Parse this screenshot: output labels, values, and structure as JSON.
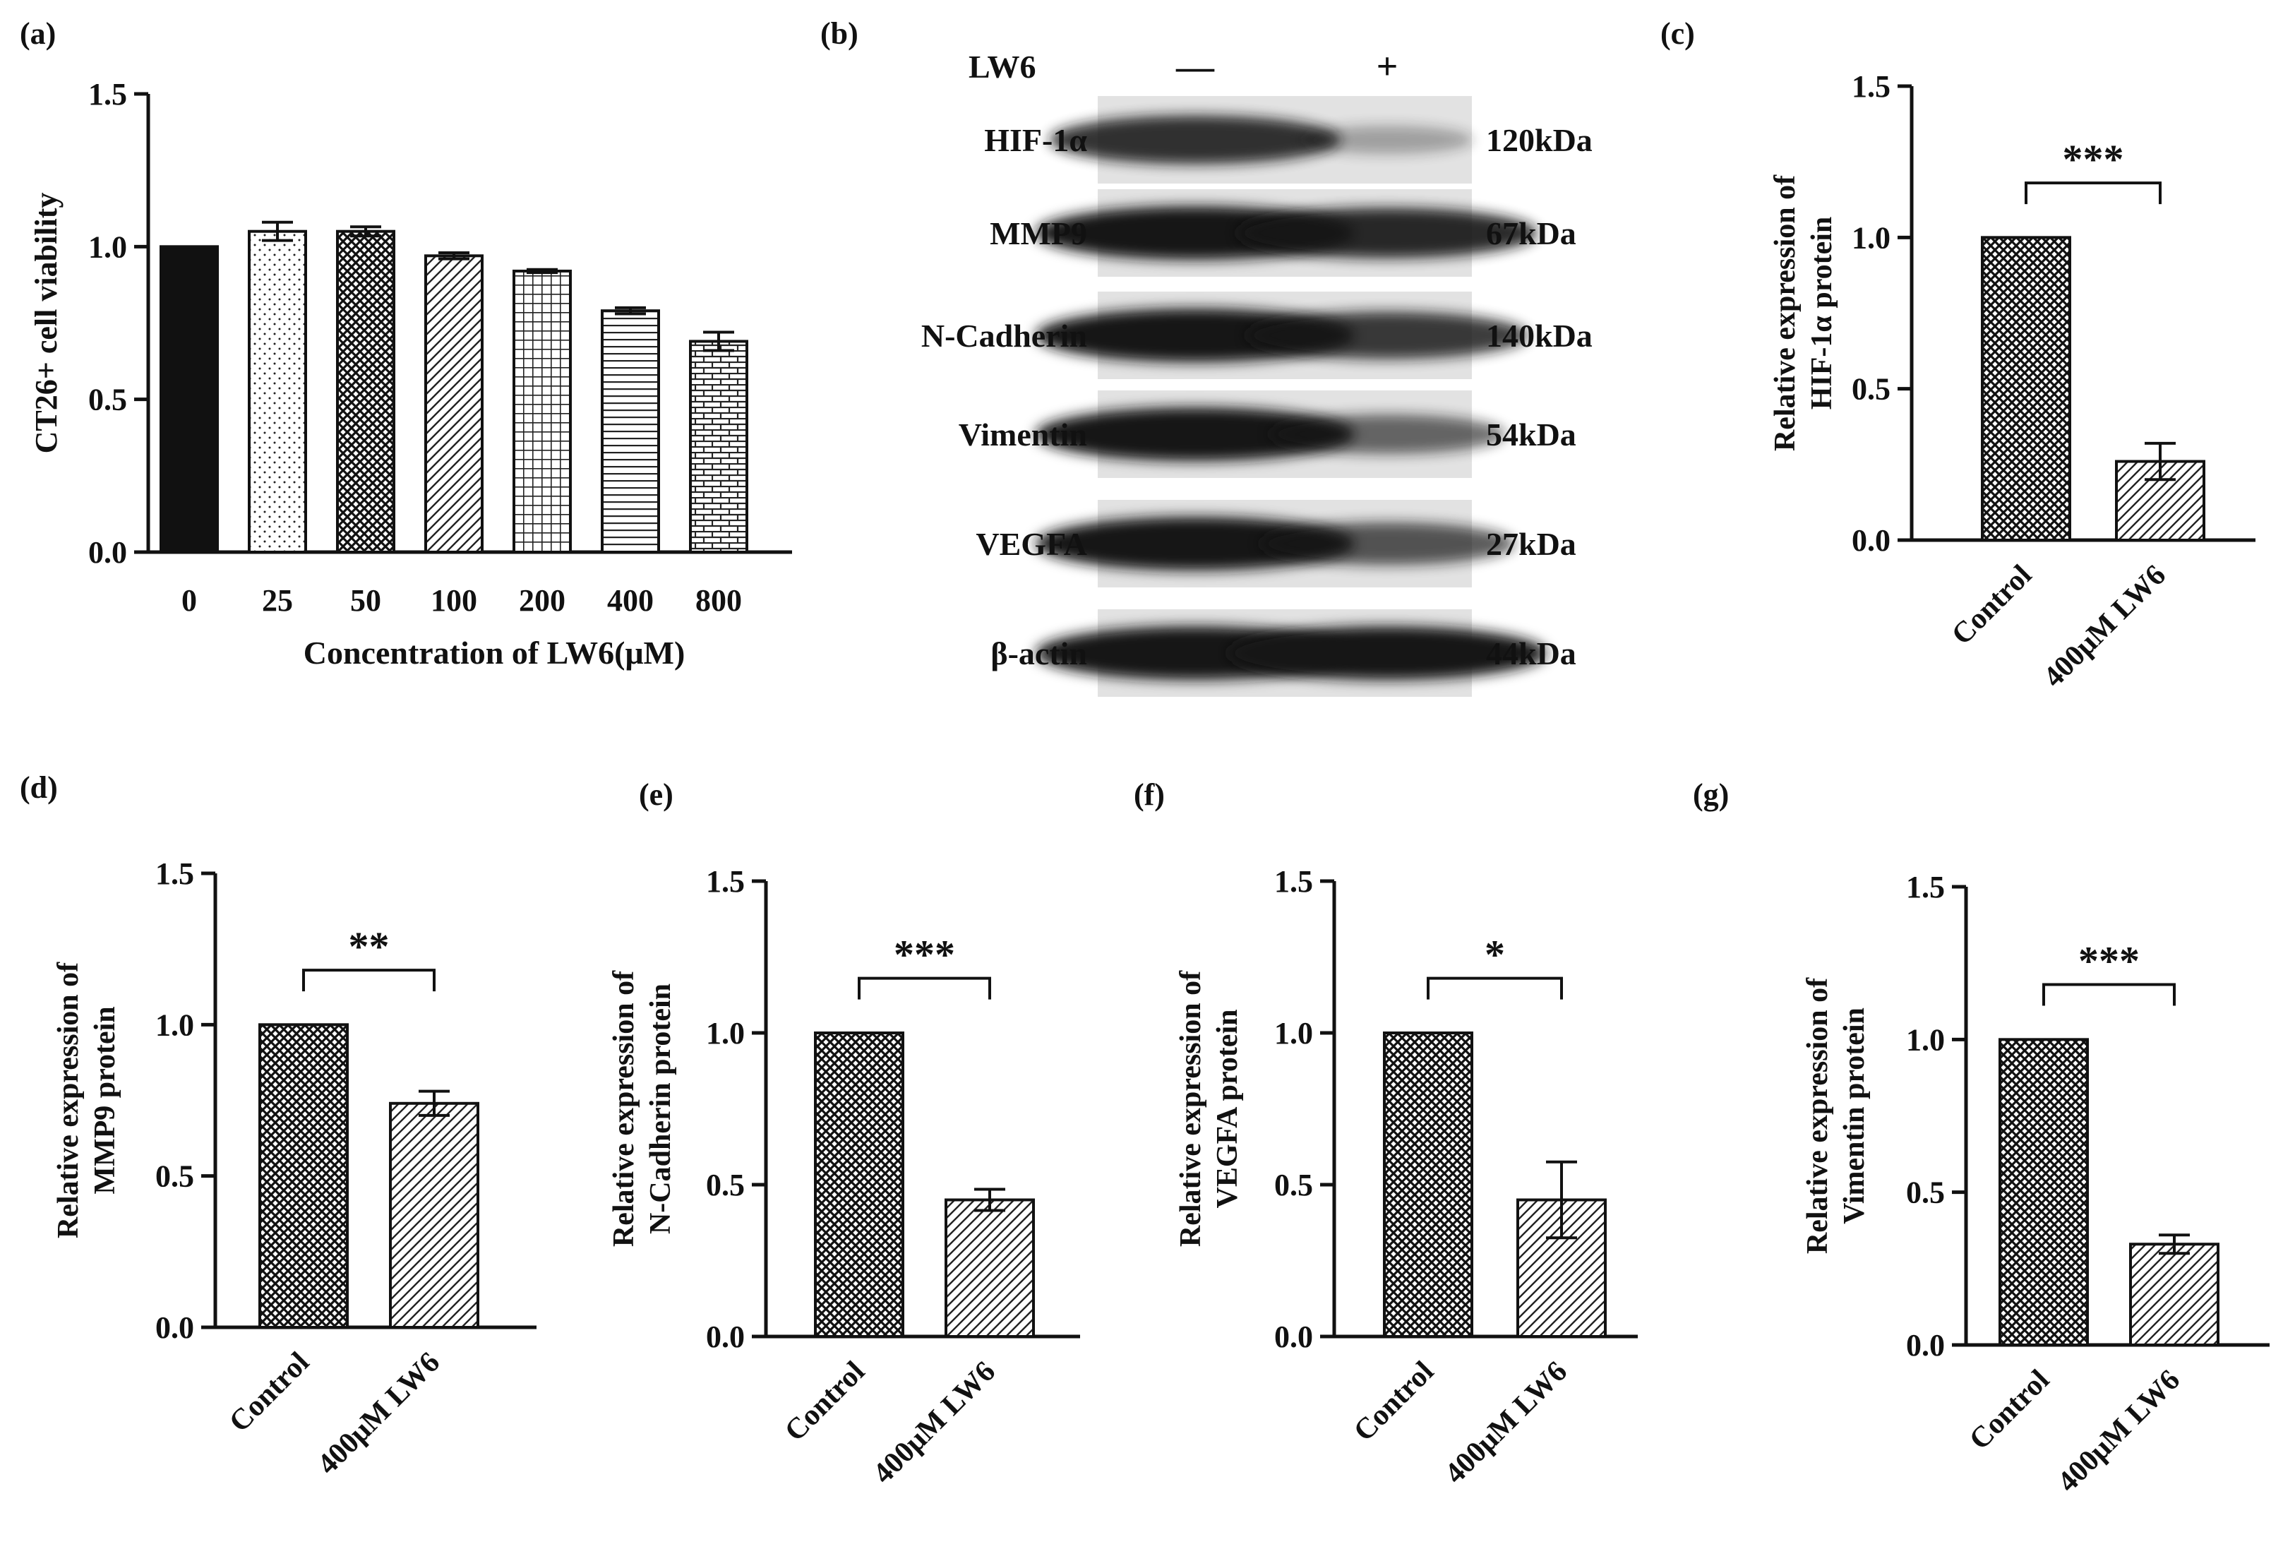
{
  "colors": {
    "ink": "#111111",
    "background": "#ffffff",
    "band": "#161616",
    "blot_bg": "#e2e2e2"
  },
  "chart_data": [
    {
      "id": "a",
      "panel_label": "(a)",
      "type": "bar",
      "categories": [
        "0",
        "25",
        "50",
        "100",
        "200",
        "400",
        "800"
      ],
      "values": [
        1.0,
        1.05,
        1.05,
        0.97,
        0.92,
        0.79,
        0.69
      ],
      "errors": [
        0.0,
        0.03,
        0.015,
        0.01,
        0.005,
        0.01,
        0.03
      ],
      "patterns": [
        "solid",
        "dots",
        "crosshatch",
        "diagonal",
        "grid",
        "horizontal",
        "brick"
      ],
      "xlabel": "Concentration of LW6(μM)",
      "ylabel": "CT26+ cell viability",
      "ylim": [
        0,
        1.5
      ],
      "yticks": [
        "0.0",
        "0.5",
        "1.0",
        "1.5"
      ],
      "grid": false
    },
    {
      "id": "c",
      "panel_label": "(c)",
      "type": "bar",
      "categories": [
        "Control",
        "400μM LW6"
      ],
      "values": [
        1.0,
        0.26
      ],
      "errors": [
        0.0,
        0.06
      ],
      "significance": "***",
      "ylabel_lines": [
        "Relative expression of",
        "HIF-1α protein"
      ],
      "ylim": [
        0,
        1.5
      ],
      "yticks": [
        "0.0",
        "0.5",
        "1.0",
        "1.5"
      ],
      "grid": false
    },
    {
      "id": "d",
      "panel_label": "(d)",
      "type": "bar",
      "categories": [
        "Control",
        "400μM LW6"
      ],
      "values": [
        1.0,
        0.74
      ],
      "errors": [
        0.0,
        0.04
      ],
      "significance": "**",
      "ylabel_lines": [
        "Relative expression of",
        "MMP9 protein"
      ],
      "ylim": [
        0,
        1.5
      ],
      "yticks": [
        "0.0",
        "0.5",
        "1.0",
        "1.5"
      ],
      "grid": false
    },
    {
      "id": "e",
      "panel_label": "(e)",
      "type": "bar",
      "categories": [
        "Control",
        "400μM LW6"
      ],
      "values": [
        1.0,
        0.45
      ],
      "errors": [
        0.0,
        0.035
      ],
      "significance": "***",
      "ylabel_lines": [
        "Relative expression of",
        "N-Cadherin protein"
      ],
      "ylim": [
        0,
        1.5
      ],
      "yticks": [
        "0.0",
        "0.5",
        "1.0",
        "1.5"
      ],
      "grid": false
    },
    {
      "id": "f",
      "panel_label": "(f)",
      "type": "bar",
      "categories": [
        "Control",
        "400μM LW6"
      ],
      "values": [
        1.0,
        0.45
      ],
      "errors": [
        0.0,
        0.125
      ],
      "significance": "*",
      "ylabel_lines": [
        "Relative expression of",
        "VEGFA protein"
      ],
      "ylim": [
        0,
        1.5
      ],
      "yticks": [
        "0.0",
        "0.5",
        "1.0",
        "1.5"
      ],
      "grid": false
    },
    {
      "id": "g",
      "panel_label": "(g)",
      "type": "bar",
      "categories": [
        "Control",
        "400μM LW6"
      ],
      "values": [
        1.0,
        0.33
      ],
      "errors": [
        0.0,
        0.03
      ],
      "significance": "***",
      "ylabel_lines": [
        "Relative expression of",
        "Vimentin protein"
      ],
      "ylim": [
        0,
        1.5
      ],
      "yticks": [
        "0.0",
        "0.5",
        "1.0",
        "1.5"
      ],
      "grid": false
    }
  ],
  "western_blot": {
    "panel_label": "(b)",
    "treatment_label": "LW6",
    "lane_signs": [
      "—",
      "+"
    ],
    "rows": [
      {
        "protein": "HIF-1α",
        "size": "120kDa",
        "intensity": [
          0.85,
          0.2
        ]
      },
      {
        "protein": "MMP9",
        "size": "67kDa",
        "intensity": [
          1.0,
          0.9
        ]
      },
      {
        "protein": "N-Cadherin",
        "size": "140kDa",
        "intensity": [
          1.0,
          0.8
        ]
      },
      {
        "protein": "Vimentin",
        "size": "54kDa",
        "intensity": [
          1.0,
          0.55
        ]
      },
      {
        "protein": "VEGFA",
        "size": "27kDa",
        "intensity": [
          1.0,
          0.65
        ]
      },
      {
        "protein": "β-actin",
        "size": "44kDa",
        "intensity": [
          1.0,
          1.0
        ]
      }
    ]
  }
}
